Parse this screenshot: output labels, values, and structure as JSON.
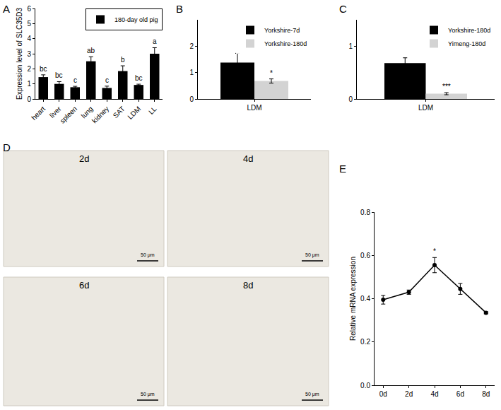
{
  "chart_data": [
    {
      "type": "bar",
      "panel": "A",
      "y_label": "Expression level of SLC35D3",
      "categories": [
        "heart",
        "liver",
        "spleen",
        "lung",
        "kidney",
        "SAT",
        "LDM",
        "LL"
      ],
      "series": [
        {
          "name": "180-day old pig",
          "color": "#000000",
          "values": [
            1.45,
            1.0,
            0.78,
            2.5,
            0.73,
            1.85,
            0.93,
            3.0
          ],
          "errors": [
            0.15,
            0.15,
            0.06,
            0.3,
            0.12,
            0.35,
            0.05,
            0.4
          ],
          "significance": [
            "bc",
            "bc",
            "c",
            "ab",
            "c",
            "b",
            "bc",
            "a"
          ]
        }
      ],
      "ylim": [
        0,
        6
      ],
      "yticks": [
        0,
        1,
        2,
        3,
        4,
        5,
        6
      ],
      "grid": false,
      "legend": "top right"
    },
    {
      "type": "bar",
      "panel": "B",
      "categories": [
        "LDM"
      ],
      "series": [
        {
          "name": "Yorkshire-7d",
          "color": "#000000",
          "values": [
            1.38
          ],
          "errors": [
            0.35
          ],
          "significance": [
            null
          ]
        },
        {
          "name": "Yorkshire-180d",
          "color": "#d3d3d3",
          "values": [
            0.68
          ],
          "errors": [
            0.08
          ],
          "significance": [
            "*"
          ]
        }
      ],
      "ylim": [
        0,
        3
      ],
      "yticks": [
        0,
        1,
        2
      ],
      "grid": false,
      "legend": "top right"
    },
    {
      "type": "bar",
      "panel": "C",
      "categories": [
        "LDM"
      ],
      "series": [
        {
          "name": "Yorkshire-180d",
          "color": "#000000",
          "values": [
            0.68
          ],
          "errors": [
            0.1
          ],
          "significance": [
            null
          ]
        },
        {
          "name": "Yimeng-180d",
          "color": "#d3d3d3",
          "values": [
            0.1
          ],
          "errors": [
            0.02
          ],
          "significance": [
            "***"
          ]
        }
      ],
      "ylim": [
        0,
        1.5
      ],
      "yticks": [
        0,
        1
      ],
      "grid": false,
      "legend": "top right"
    },
    {
      "type": "image",
      "panel": "D",
      "images": [
        {
          "label": "2d",
          "scale_bar": "50 μm"
        },
        {
          "label": "4d",
          "scale_bar": "50 μm"
        },
        {
          "label": "6d",
          "scale_bar": "50 μm"
        },
        {
          "label": "8d",
          "scale_bar": "50 μm"
        }
      ]
    },
    {
      "type": "line",
      "panel": "E",
      "y_label": "Relative mRNA expression",
      "categories": [
        "0d",
        "2d",
        "4d",
        "6d",
        "8d"
      ],
      "series": [
        {
          "color": "#000000",
          "marker": "circle",
          "values": [
            0.395,
            0.43,
            0.555,
            0.445,
            0.335
          ],
          "errors": [
            0.02,
            0.01,
            0.035,
            0.025,
            0.005
          ],
          "significance": [
            null,
            null,
            "*",
            null,
            null
          ]
        }
      ],
      "ylim": [
        0,
        0.8
      ],
      "yticks": [
        {
          "value": 0,
          "label": "0.0"
        },
        0.2,
        0.4,
        0.6,
        0.8
      ],
      "grid": false
    }
  ]
}
